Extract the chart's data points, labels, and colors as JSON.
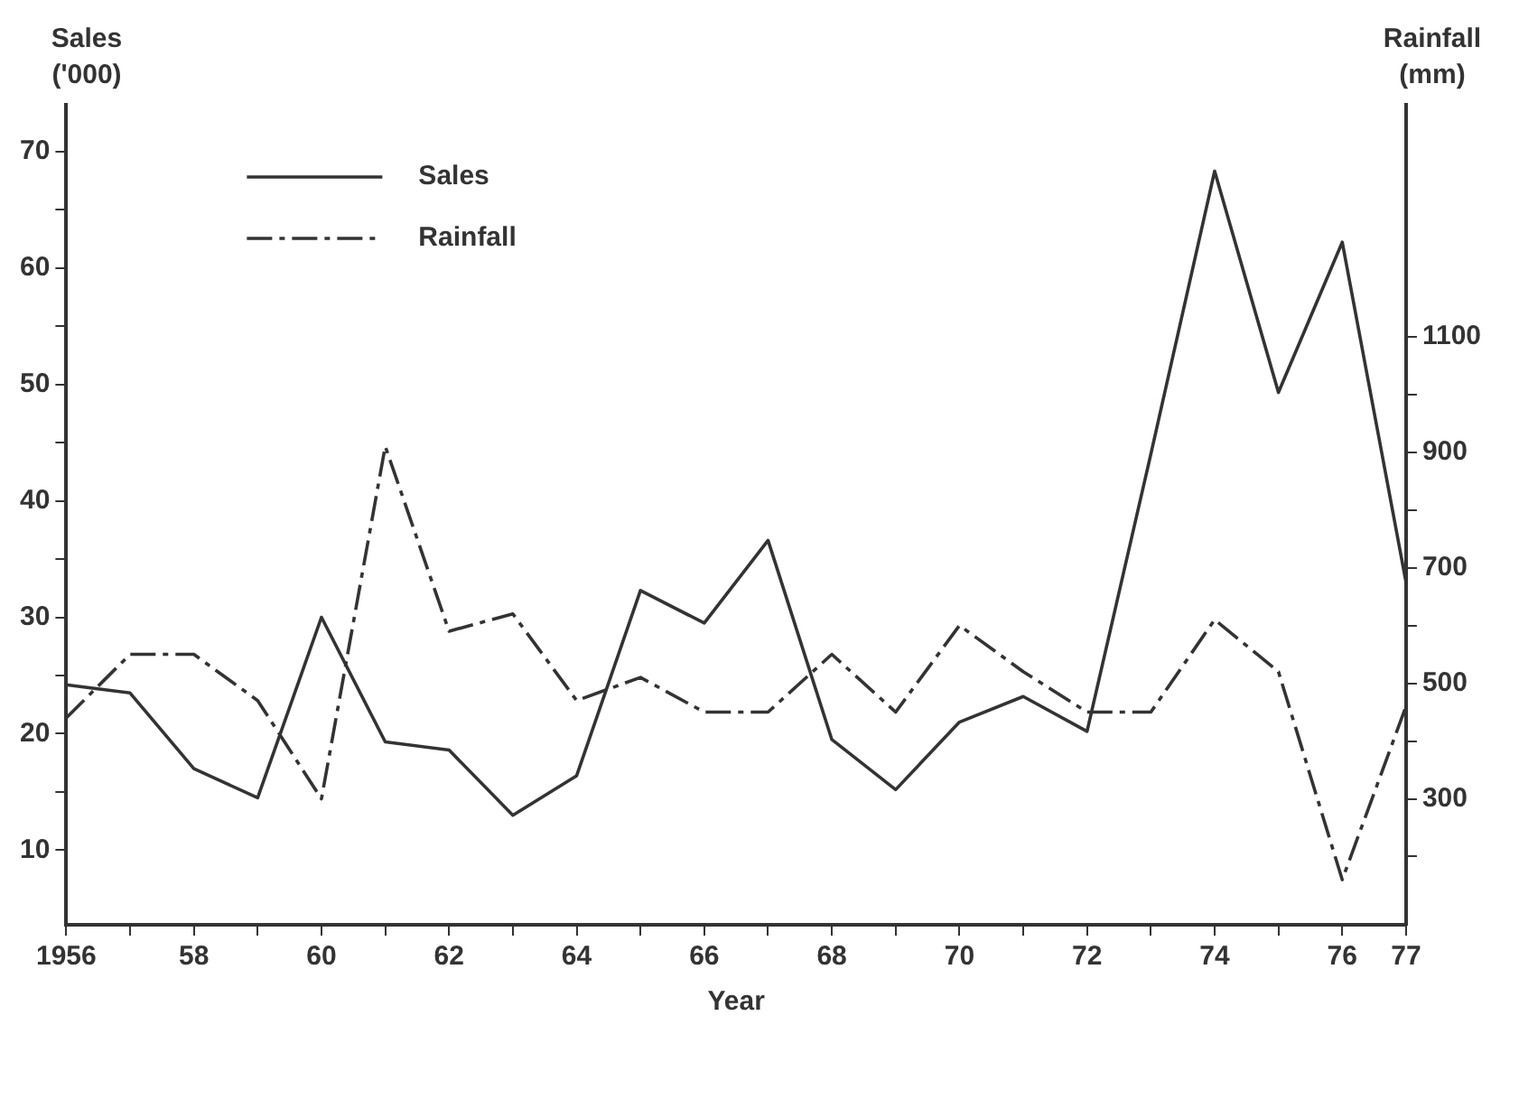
{
  "chart_data": {
    "type": "line",
    "xlabel": "Year",
    "ylabel": "Sales ('000)",
    "y2label": "Rainfall (mm)",
    "x": [
      1956,
      1957,
      1958,
      1959,
      1960,
      1961,
      1962,
      1963,
      1964,
      1965,
      1966,
      1967,
      1968,
      1969,
      1970,
      1971,
      1972,
      1973,
      1974,
      1975,
      1976,
      1977
    ],
    "series": [
      {
        "name": "Sales",
        "color": "#333333",
        "line_style": "solid",
        "values": [
          24.2,
          23.5,
          17,
          14.5,
          30,
          19.3,
          18.6,
          13,
          16.4,
          32.3,
          29.5,
          36.6,
          19.5,
          15.2,
          21,
          23.2,
          20.2,
          44,
          68.3,
          49.3,
          62.2,
          33
        ]
      },
      {
        "name": "Rainfall",
        "color": "#333333",
        "line_style": "dashdot",
        "axis": "y2",
        "values": [
          440,
          550,
          550,
          470,
          300,
          910,
          590,
          620,
          470,
          510,
          450,
          450,
          550,
          450,
          600,
          520,
          450,
          450,
          610,
          520,
          160,
          460
        ]
      }
    ],
    "xlim": [
      1956,
      1977
    ],
    "xticks": [
      1956,
      {
        "value": 1957,
        "label": null
      },
      {
        "value": 1958,
        "label": "58"
      },
      {
        "value": 1959,
        "label": null
      },
      {
        "value": 1960,
        "label": "60"
      },
      {
        "value": 1961,
        "label": null
      },
      {
        "value": 1962,
        "label": "62"
      },
      {
        "value": 1963,
        "label": null
      },
      {
        "value": 1964,
        "label": "64"
      },
      {
        "value": 1965,
        "label": null
      },
      {
        "value": 1966,
        "label": "66"
      },
      {
        "value": 1967,
        "label": null
      },
      {
        "value": 1968,
        "label": "68"
      },
      {
        "value": 1969,
        "label": null
      },
      {
        "value": 1970,
        "label": "70"
      },
      {
        "value": 1971,
        "label": null
      },
      {
        "value": 1972,
        "label": "72"
      },
      {
        "value": 1973,
        "label": null
      },
      {
        "value": 1974,
        "label": "74"
      },
      {
        "value": 1975,
        "label": null
      },
      {
        "value": 1976,
        "label": "76"
      },
      {
        "value": 1977,
        "label": "77"
      }
    ],
    "ylim": [
      3.6,
      74
    ],
    "yticks": [
      10,
      {
        "value": 15,
        "label": null
      },
      20,
      {
        "value": 25,
        "label": null
      },
      30,
      {
        "value": 35,
        "label": null
      },
      40,
      {
        "value": 45,
        "label": null
      },
      50,
      {
        "value": 55,
        "label": null
      },
      60,
      {
        "value": 65,
        "label": null
      },
      70
    ],
    "y2lim": [
      82,
      1501
    ],
    "y2ticks": [
      {
        "value": 200,
        "label": null
      },
      300,
      {
        "value": 400,
        "label": null
      },
      500,
      {
        "value": 600,
        "label": null
      },
      700,
      {
        "value": 800,
        "label": null
      },
      900,
      {
        "value": 1000,
        "label": null
      },
      1100
    ],
    "grid": false,
    "legend": "top left",
    "marker": "none"
  }
}
